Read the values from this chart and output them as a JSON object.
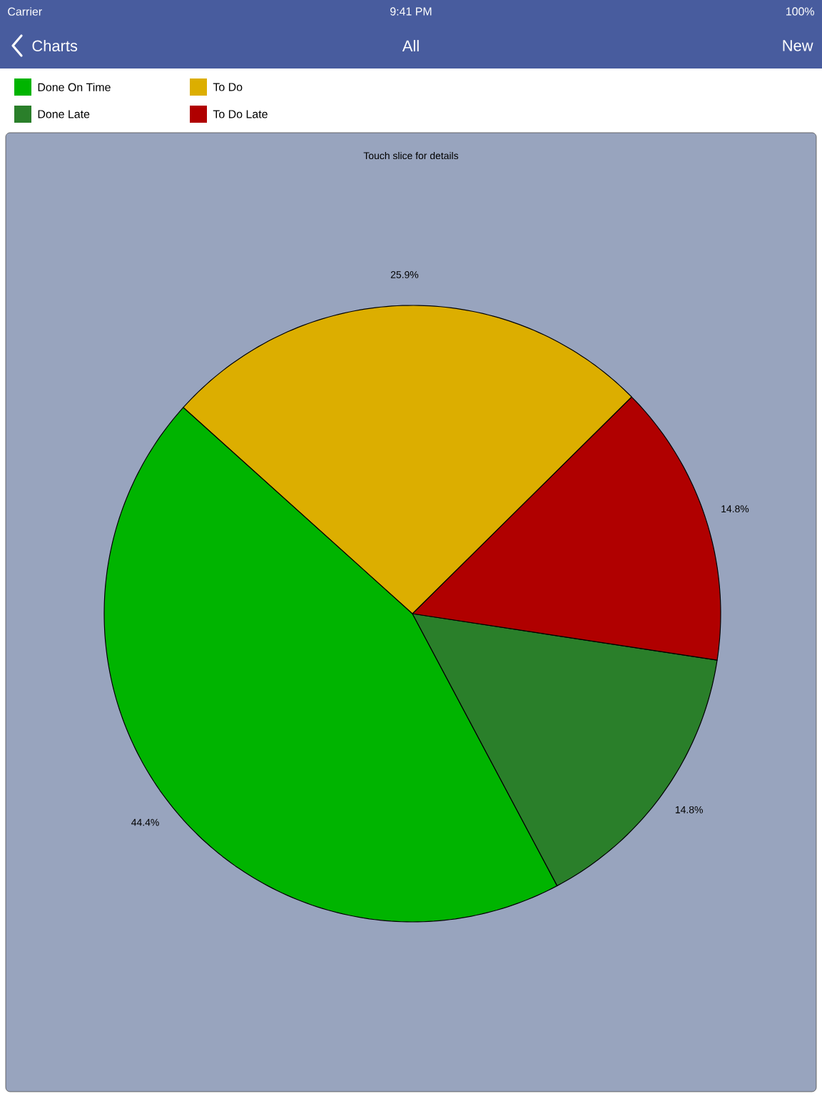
{
  "chart_data": {
    "type": "pie",
    "title": "All",
    "annotations": [
      "Carrier",
      "9:41 PM",
      "100%",
      "Charts",
      "New",
      "Touch slice for details"
    ],
    "categories": [
      "Done On Time",
      "Done Late",
      "To Do Late",
      "To Do"
    ],
    "values": [
      44.4,
      14.8,
      14.8,
      25.9
    ],
    "colors": [
      "#00b400",
      "#2a7f2a",
      "#b00000",
      "#dcae00"
    ],
    "value_labels": [
      "44.4%",
      "14.8%",
      "14.8%",
      "25.9%"
    ],
    "legend": "top left"
  }
}
